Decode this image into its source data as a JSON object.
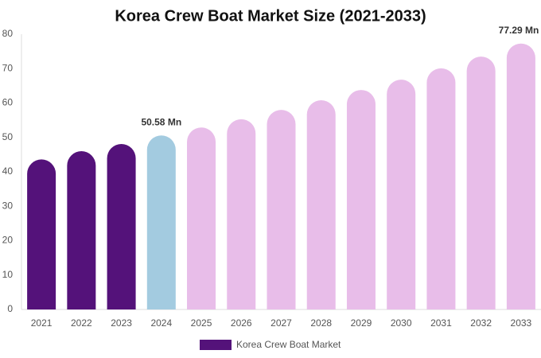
{
  "chart_data": {
    "type": "bar",
    "title": "Korea Crew Boat Market Size (2021-2033)",
    "categories": [
      "2021",
      "2022",
      "2023",
      "2024",
      "2025",
      "2026",
      "2027",
      "2028",
      "2029",
      "2030",
      "2031",
      "2032",
      "2033"
    ],
    "series": [
      {
        "name": "Korea Crew Boat Market",
        "color": "#54127a",
        "values": [
          43.6,
          46.0,
          48.1,
          50.58,
          52.9,
          55.3,
          58.0,
          60.8,
          63.8,
          66.8,
          70.1,
          73.5,
          77.29
        ],
        "value_labels": [
          null,
          null,
          null,
          "50.58 Mn",
          null,
          null,
          null,
          null,
          null,
          null,
          null,
          null,
          "77.29 Mn"
        ],
        "colors": [
          "#54127a",
          "#54127a",
          "#54127a",
          "#a3cbe0",
          "#e8bde9",
          "#e8bde9",
          "#e8bde9",
          "#e8bde9",
          "#e8bde9",
          "#e8bde9",
          "#e8bde9",
          "#e8bde9",
          "#e8bde9"
        ]
      }
    ],
    "ylim": [
      0,
      80
    ],
    "yticks": [
      0,
      10,
      20,
      30,
      40,
      50,
      60,
      70,
      80
    ],
    "grid": false
  }
}
